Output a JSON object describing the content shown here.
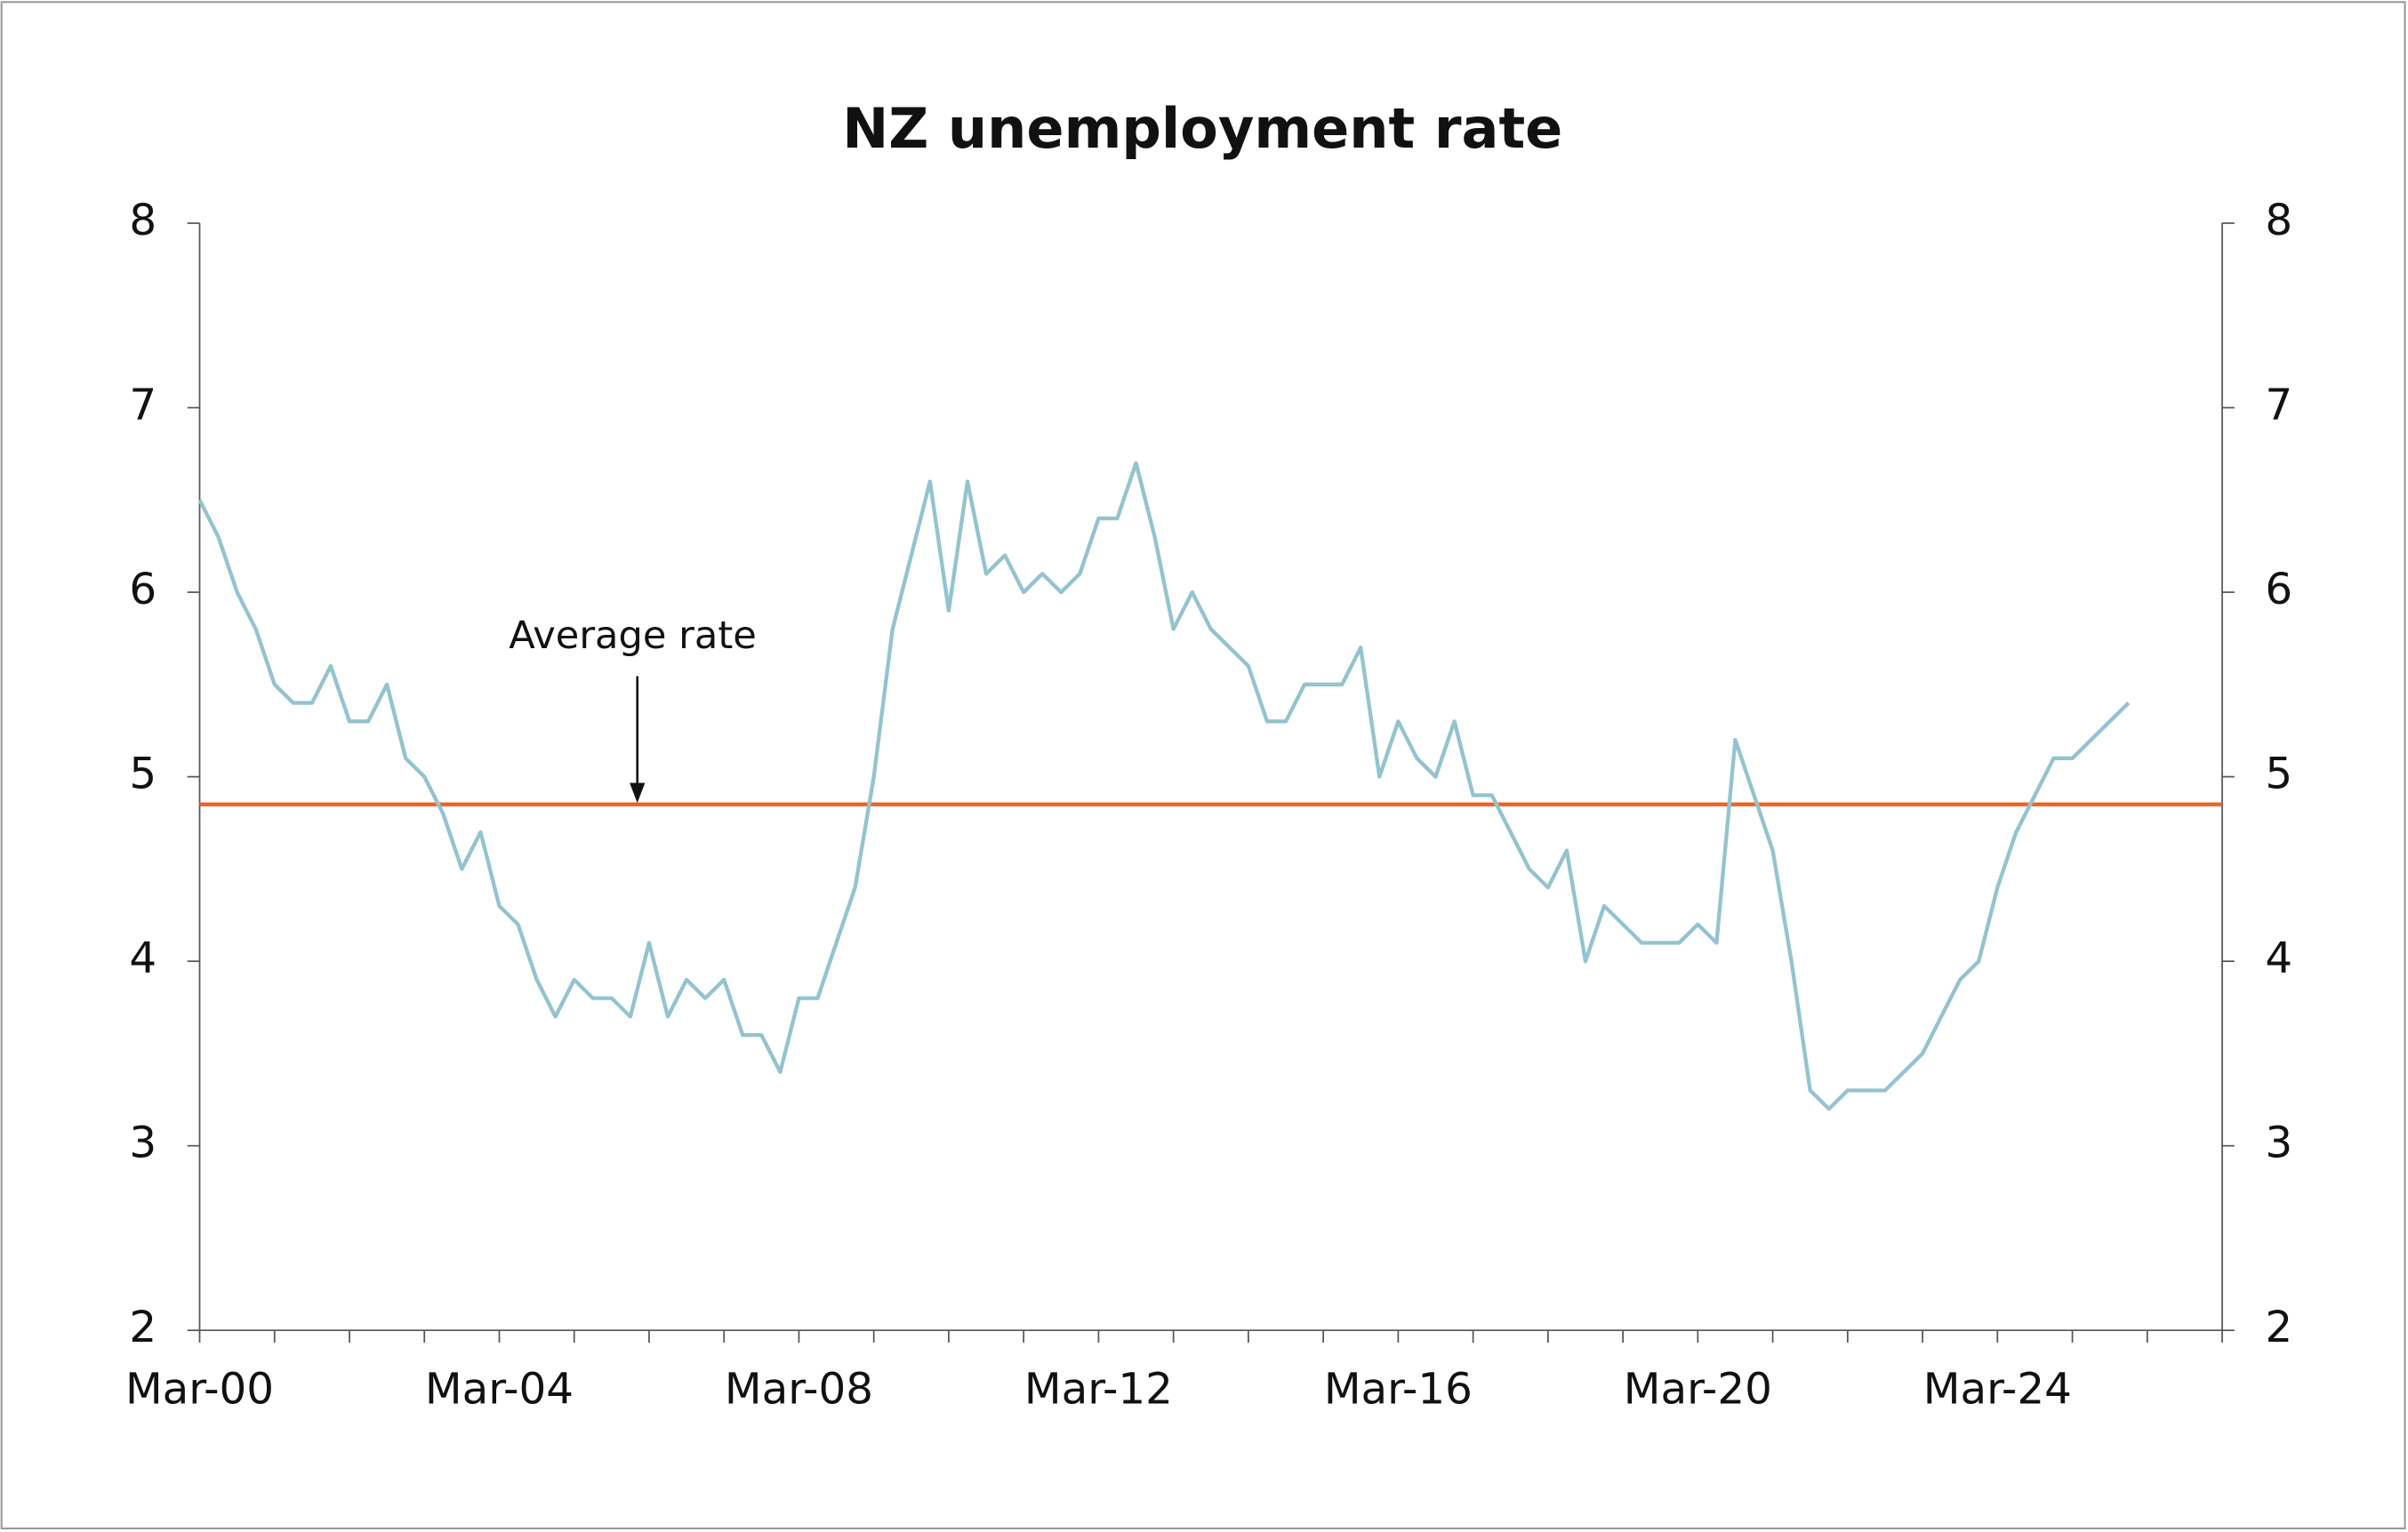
{
  "chart_data": {
    "type": "line",
    "title": "NZ unemployment rate",
    "categories": [
      "Mar-00",
      null,
      null,
      null,
      null,
      null,
      null,
      null,
      null,
      null,
      null,
      null,
      null,
      null,
      null,
      null,
      "Mar-04",
      null,
      null,
      null,
      null,
      null,
      null,
      null,
      null,
      null,
      null,
      null,
      null,
      null,
      null,
      null,
      "Mar-08",
      null,
      null,
      null,
      null,
      null,
      null,
      null,
      null,
      null,
      null,
      null,
      null,
      null,
      null,
      null,
      "Mar-12",
      null,
      null,
      null,
      null,
      null,
      null,
      null,
      null,
      null,
      null,
      null,
      null,
      null,
      null,
      null,
      "Mar-16",
      null,
      null,
      null,
      null,
      null,
      null,
      null,
      null,
      null,
      null,
      null,
      null,
      null,
      null,
      null,
      "Mar-20",
      null,
      null,
      null,
      null,
      null,
      null,
      null,
      null,
      null,
      null,
      null,
      null,
      null,
      null,
      null,
      "Mar-24",
      null,
      null,
      null,
      null,
      null,
      null,
      null,
      null,
      null,
      null,
      null,
      null
    ],
    "series": [
      {
        "color": "#93c3cf",
        "values": [
          6.5,
          6.3,
          6.0,
          5.8,
          5.5,
          5.4,
          5.4,
          5.6,
          5.3,
          5.3,
          5.5,
          5.1,
          5.0,
          4.8,
          4.5,
          4.7,
          4.3,
          4.2,
          3.9,
          3.7,
          3.9,
          3.8,
          3.8,
          3.7,
          4.1,
          3.7,
          3.9,
          3.8,
          3.9,
          3.6,
          3.6,
          3.4,
          3.8,
          3.8,
          4.1,
          4.4,
          5.0,
          5.8,
          6.2,
          6.6,
          5.9,
          6.6,
          6.1,
          6.2,
          6.0,
          6.1,
          6.0,
          6.1,
          6.4,
          6.4,
          6.7,
          6.3,
          5.8,
          6.0,
          5.8,
          5.7,
          5.6,
          5.3,
          5.3,
          5.5,
          5.5,
          5.5,
          5.7,
          5.0,
          5.3,
          5.1,
          5.0,
          5.3,
          4.9,
          4.9,
          4.7,
          4.5,
          4.4,
          4.6,
          4.0,
          4.3,
          4.2,
          4.1,
          4.1,
          4.1,
          4.2,
          4.1,
          5.2,
          4.9,
          4.6,
          4.0,
          3.3,
          3.2,
          3.3,
          3.3,
          3.3,
          3.4,
          3.5,
          3.7,
          3.9,
          4.0,
          4.4,
          4.7,
          4.9,
          5.1,
          5.1,
          5.2,
          5.3,
          5.4,
          null,
          null,
          null,
          null,
          null
        ]
      }
    ],
    "average_line": {
      "label": "Average rate",
      "value": 4.85,
      "color": "#e8622a"
    },
    "ylim": [
      2,
      8
    ],
    "yticks": [
      2,
      3,
      4,
      5,
      6,
      7,
      8
    ],
    "y2lim": [
      2,
      8
    ],
    "y2ticks": [
      2,
      3,
      4,
      5,
      6,
      7,
      8
    ]
  }
}
